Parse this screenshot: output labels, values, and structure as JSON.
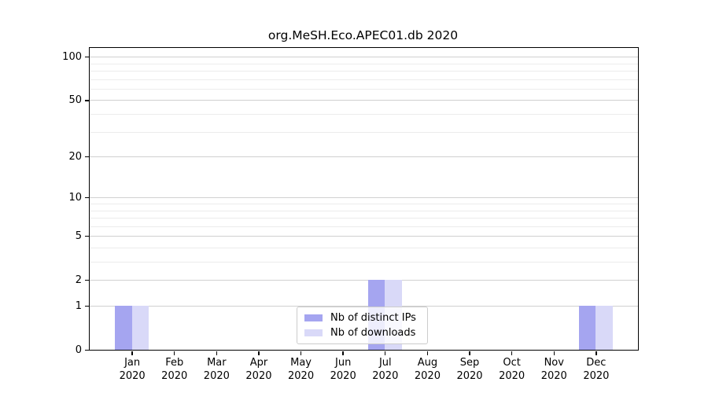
{
  "figure_title": "org.MeSH.Eco.APEC01.db 2020",
  "colors": {
    "ips_bar": "#a5a5f0",
    "downloads_bar": "#d9d9f8",
    "grid_major": "#d0d0d0",
    "grid_minor": "#ececec",
    "axis": "#000000",
    "legend_border": "#cccccc"
  },
  "chart_data": {
    "type": "bar",
    "title": "org.MeSH.Eco.APEC01.db 2020",
    "categories": [
      "Jan",
      "Feb",
      "Mar",
      "Apr",
      "May",
      "Jun",
      "Jul",
      "Aug",
      "Sep",
      "Oct",
      "Nov",
      "Dec"
    ],
    "year_label": "2020",
    "series": [
      {
        "name": "Nb of distinct IPs",
        "color": "#a5a5f0",
        "values": [
          1,
          0,
          0,
          0,
          0,
          0,
          2,
          0,
          0,
          0,
          0,
          1
        ]
      },
      {
        "name": "Nb of downloads",
        "color": "#d9d9f8",
        "values": [
          1,
          0,
          0,
          0,
          0,
          0,
          2,
          0,
          0,
          0,
          0,
          1
        ]
      }
    ],
    "xlabel": "",
    "ylabel": "",
    "yscale": "log1p",
    "yticks": [
      0,
      1,
      2,
      5,
      10,
      20,
      50,
      100
    ],
    "minor_yticks": [
      3,
      4,
      6,
      7,
      8,
      9,
      30,
      40,
      60,
      70,
      80,
      90
    ],
    "ylim": [
      0,
      115
    ],
    "grid": "horizontal",
    "legend_position": "bottom-center"
  }
}
